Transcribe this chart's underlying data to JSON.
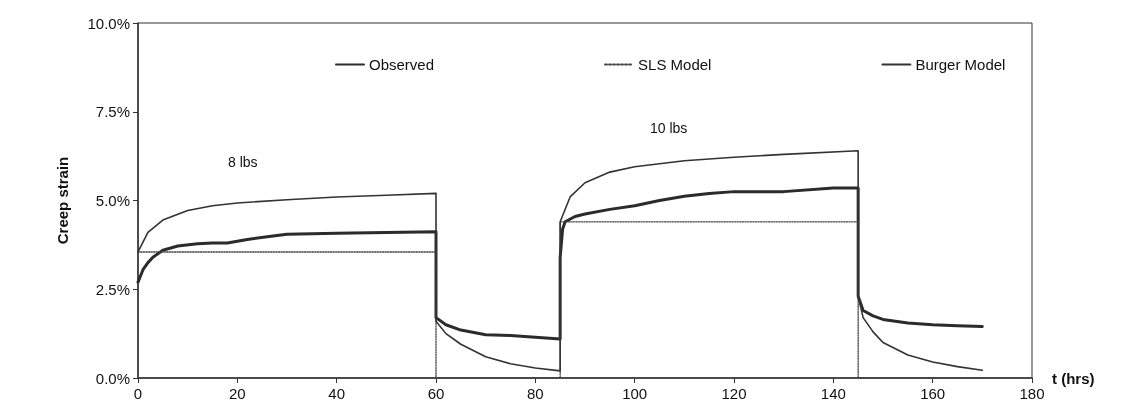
{
  "chart_data": {
    "type": "line",
    "xlabel": "t (hrs)",
    "ylabel": "Creep strain",
    "xlim": [
      0,
      180
    ],
    "xticks": [
      0,
      20,
      40,
      60,
      80,
      100,
      120,
      140,
      160,
      180
    ],
    "ylim": [
      0,
      10
    ],
    "yticks": [
      {
        "value": 0,
        "label": "0.0%"
      },
      {
        "value": 2.5,
        "label": "2.5%"
      },
      {
        "value": 5,
        "label": "5.0%"
      },
      {
        "value": 7.5,
        "label": "7.5%"
      },
      {
        "value": 10,
        "label": "10.0%"
      }
    ],
    "grid": false,
    "legend": "top",
    "marker": "none",
    "annotations": [
      "8 lbs",
      "10 lbs"
    ],
    "series": [
      {
        "name": "Observed",
        "color": "#2b2b2b",
        "line_style": "solid",
        "x": [
          0,
          1,
          2,
          3,
          5,
          8,
          12,
          15,
          18,
          22,
          26,
          30,
          40,
          50,
          60,
          60,
          62,
          65,
          70,
          75,
          80,
          85,
          85,
          85.5,
          86,
          88,
          90,
          95,
          100,
          105,
          110,
          115,
          120,
          130,
          140,
          145,
          145,
          146,
          148,
          150,
          155,
          160,
          165,
          170
        ],
        "values": [
          2.7,
          3.05,
          3.25,
          3.4,
          3.6,
          3.72,
          3.78,
          3.8,
          3.8,
          3.9,
          3.98,
          4.05,
          4.08,
          4.1,
          4.12,
          1.7,
          1.5,
          1.35,
          1.22,
          1.2,
          1.15,
          1.1,
          3.4,
          4.2,
          4.4,
          4.55,
          4.62,
          4.75,
          4.85,
          5.0,
          5.12,
          5.2,
          5.25,
          5.25,
          5.35,
          5.35,
          2.3,
          1.9,
          1.75,
          1.65,
          1.55,
          1.5,
          1.47,
          1.45
        ]
      },
      {
        "name": "SLS Model",
        "color": "#444444",
        "line_style": "dotted",
        "x": [
          0,
          60,
          60,
          85,
          85,
          145,
          145,
          170
        ],
        "values": [
          3.55,
          3.55,
          0,
          0,
          4.4,
          4.4,
          0,
          0
        ]
      },
      {
        "name": "Burger Model",
        "color": "#333333",
        "line_style": "solid",
        "x": [
          0,
          2,
          5,
          10,
          15,
          20,
          30,
          40,
          50,
          60,
          60,
          62,
          65,
          70,
          75,
          80,
          85,
          85,
          87,
          90,
          95,
          100,
          110,
          120,
          130,
          145,
          145,
          146,
          148,
          150,
          155,
          160,
          165,
          170
        ],
        "values": [
          3.55,
          4.1,
          4.45,
          4.72,
          4.85,
          4.93,
          5.02,
          5.1,
          5.15,
          5.2,
          1.6,
          1.25,
          0.95,
          0.6,
          0.4,
          0.28,
          0.2,
          4.4,
          5.1,
          5.5,
          5.8,
          5.95,
          6.12,
          6.22,
          6.3,
          6.4,
          2.3,
          1.7,
          1.3,
          1.0,
          0.65,
          0.45,
          0.32,
          0.22
        ]
      }
    ]
  }
}
